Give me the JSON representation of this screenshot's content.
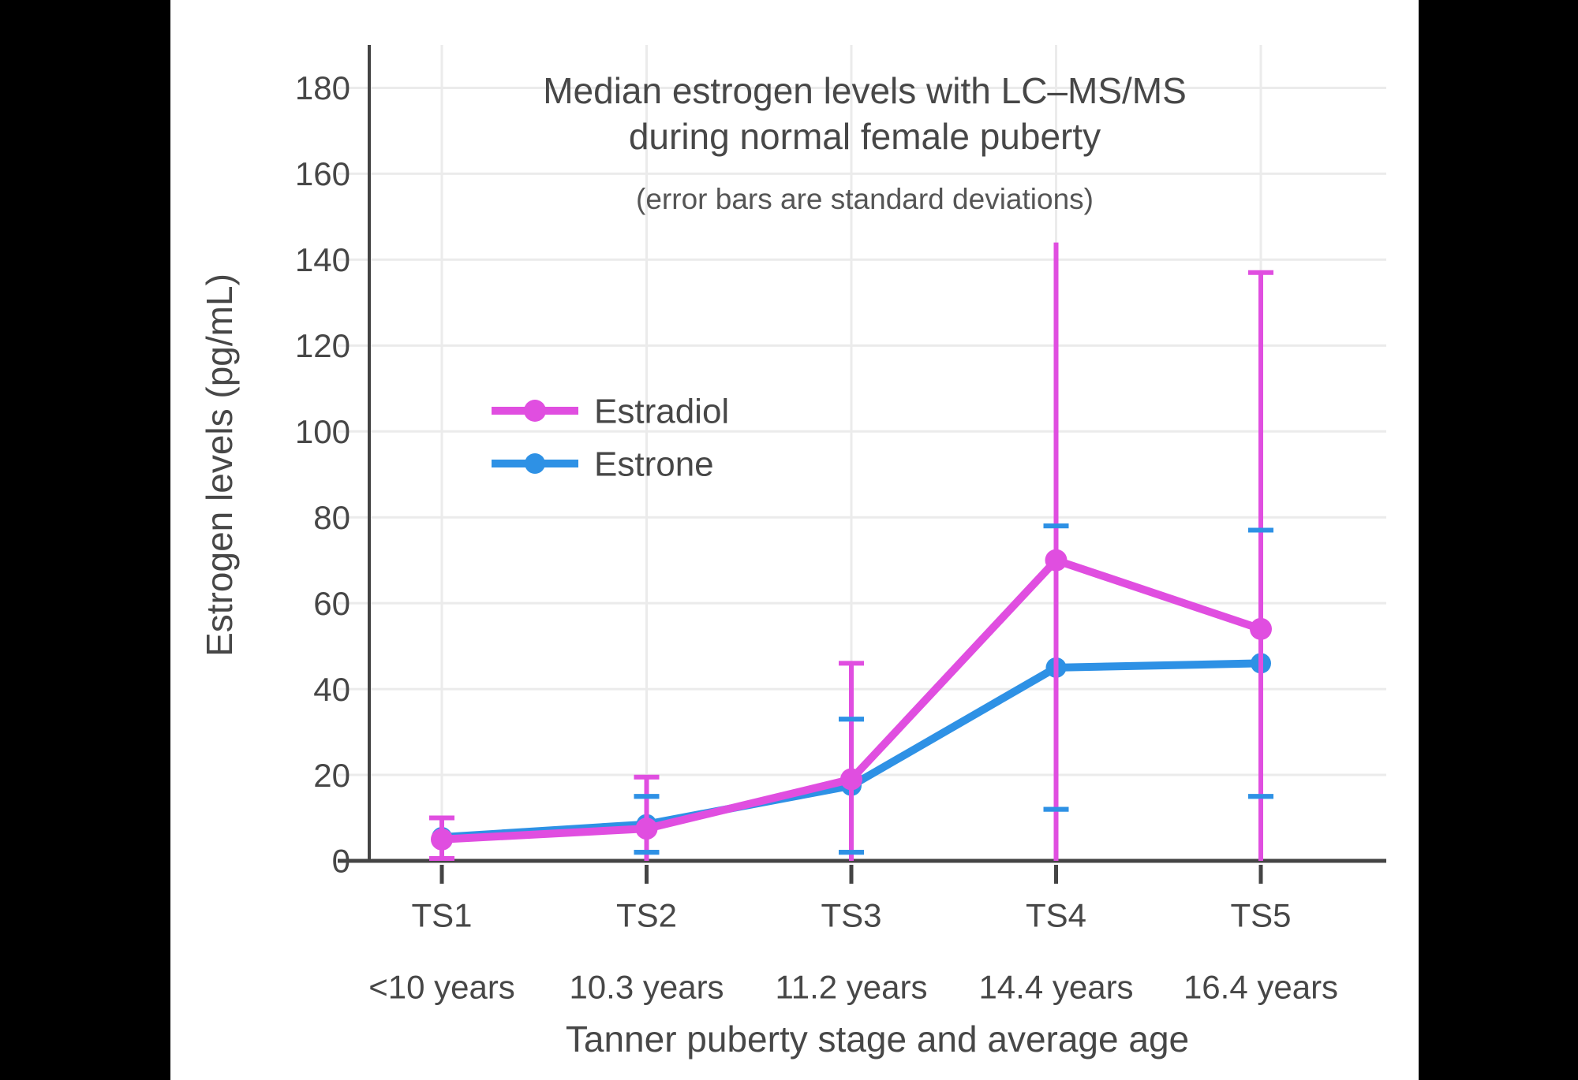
{
  "chart_data": {
    "type": "line",
    "title_line1": "Median estrogen levels with LC–MS/MS",
    "title_line2": "during normal female puberty",
    "subtitle": "(error bars are standard deviations)",
    "ylabel": "Estrogen levels (pg/mL)",
    "xlabel": "Tanner puberty stage and average age",
    "ylim": [
      0,
      190
    ],
    "yticks": [
      0,
      20,
      40,
      60,
      80,
      100,
      120,
      140,
      160,
      180
    ],
    "categories": [
      "TS1",
      "TS2",
      "TS3",
      "TS4",
      "TS5"
    ],
    "category_ages": [
      "<10 years",
      "10.3 years",
      "11.2 years",
      "14.4 years",
      "16.4 years"
    ],
    "grid": true,
    "error_bars": "standard deviations",
    "legend_position": "inside-upper-left",
    "series": [
      {
        "name": "Estrone",
        "color": "#2E91E5",
        "values": [
          5.5,
          8.5,
          17.5,
          45,
          46
        ],
        "sd": [
          null,
          6.5,
          15.5,
          33,
          31
        ],
        "top_caps": [
          true,
          true,
          true,
          true,
          true
        ]
      },
      {
        "name": "Estradiol",
        "color": "#E04EE0",
        "values": [
          5,
          7.5,
          19,
          70,
          54
        ],
        "sd": [
          5,
          12,
          27,
          74,
          83
        ],
        "top_caps": [
          true,
          true,
          true,
          false,
          true
        ]
      }
    ],
    "style": {
      "text_color": "#474747",
      "subtitle_color": "#555555",
      "axis_color": "#444444",
      "grid_color": "#ebebeb",
      "background": "#ffffff",
      "frame_color": "#000000"
    }
  }
}
